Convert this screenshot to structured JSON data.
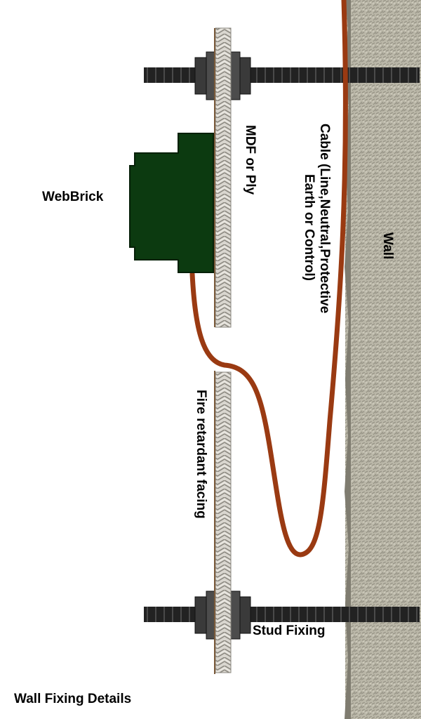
{
  "title": "Wall Fixing Details",
  "labels": {
    "webbrick": "WebBrick",
    "board": "MDF or Ply",
    "cable_line1": "Cable (Line,Neutral,Protective",
    "cable_line2": "Earth or Control)",
    "wall": "Wall",
    "facing": "Fire retardant facing",
    "stud": "Stud Fixing"
  },
  "colors": {
    "cable": "#9a3a12",
    "webbrick": "#0c3a10",
    "board_edge": "#7a5a3a",
    "stud": "#222222",
    "wall": "#b8b5a6"
  }
}
